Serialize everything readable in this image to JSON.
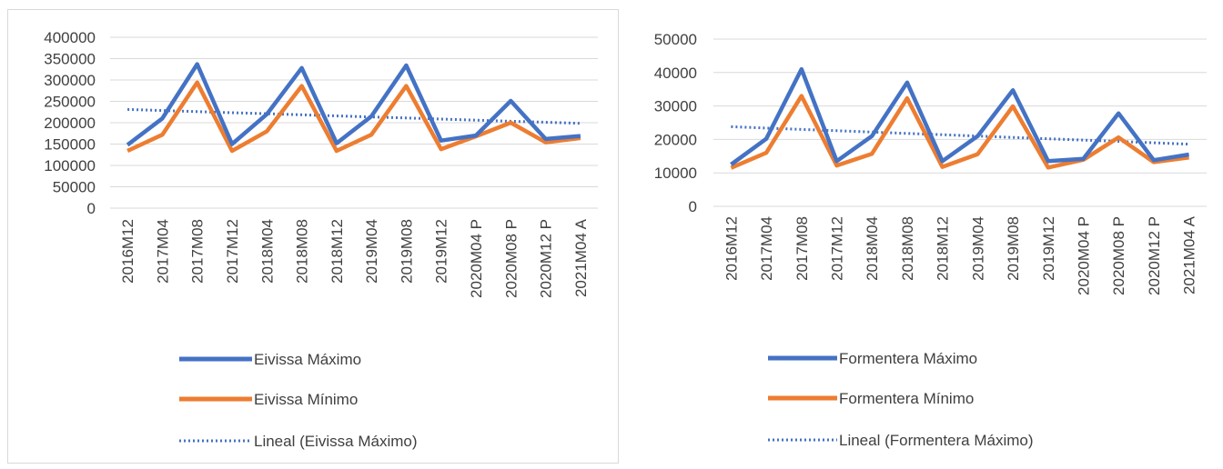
{
  "chart_data": [
    {
      "type": "line",
      "categories": [
        "2016M12",
        "2017M04",
        "2017M08",
        "2017M12",
        "2018M04",
        "2018M08",
        "2018M12",
        "2019M04",
        "2019M08",
        "2019M12",
        "2020M04 P",
        "2020M08 P",
        "2020M12 P",
        "2021M04 A"
      ],
      "yticks": [
        "400000",
        "350000",
        "300000",
        "250000",
        "200000",
        "150000",
        "100000",
        "50000",
        "0"
      ],
      "ylim": [
        0,
        400000
      ],
      "grid": true,
      "legend_position": "bottom",
      "series": [
        {
          "name": "Eivissa Máximo",
          "color": "#4472c4",
          "style": "solid",
          "values": [
            148000,
            210000,
            337000,
            150000,
            220000,
            328000,
            152000,
            215000,
            334000,
            158000,
            170000,
            251000,
            162000,
            169000
          ]
        },
        {
          "name": "Eivissa Mínimo",
          "color": "#ed7d31",
          "style": "solid",
          "values": [
            134000,
            172000,
            294000,
            134000,
            180000,
            286000,
            134000,
            172000,
            286000,
            138000,
            168000,
            200000,
            154000,
            164000
          ]
        },
        {
          "name": "Lineal (Eivissa Máximo)",
          "color": "#4472c4",
          "style": "dotted",
          "values": [
            231000,
            228500,
            226000,
            223500,
            221000,
            218500,
            216000,
            213500,
            211000,
            208500,
            206000,
            203500,
            201000,
            198500
          ]
        }
      ]
    },
    {
      "type": "line",
      "categories": [
        "2016M12",
        "2017M04",
        "2017M08",
        "2017M12",
        "2018M04",
        "2018M08",
        "2018M12",
        "2019M04",
        "2019M08",
        "2019M12",
        "2020M04 P",
        "2020M08 P",
        "2020M12 P",
        "2021M04 A"
      ],
      "yticks": [
        "50000",
        "40000",
        "30000",
        "20000",
        "10000",
        "0"
      ],
      "ylim": [
        0,
        50000
      ],
      "grid": true,
      "legend_position": "bottom",
      "series": [
        {
          "name": "Formentera Máximo",
          "color": "#4472c4",
          "style": "solid",
          "values": [
            12500,
            20200,
            41000,
            13500,
            21000,
            37000,
            13500,
            21000,
            34700,
            13500,
            14200,
            27800,
            13800,
            15500
          ]
        },
        {
          "name": "Formentera Mínimo",
          "color": "#ed7d31",
          "style": "solid",
          "values": [
            11500,
            16000,
            33000,
            12200,
            15700,
            32300,
            11800,
            15600,
            29900,
            11600,
            13900,
            20600,
            13200,
            14600
          ]
        },
        {
          "name": "Lineal (Formentera Máximo)",
          "color": "#4472c4",
          "style": "dotted",
          "values": [
            23800,
            23400,
            23000,
            22600,
            22200,
            21800,
            21400,
            21000,
            20600,
            20200,
            19800,
            19400,
            19000,
            18600
          ]
        }
      ]
    }
  ]
}
